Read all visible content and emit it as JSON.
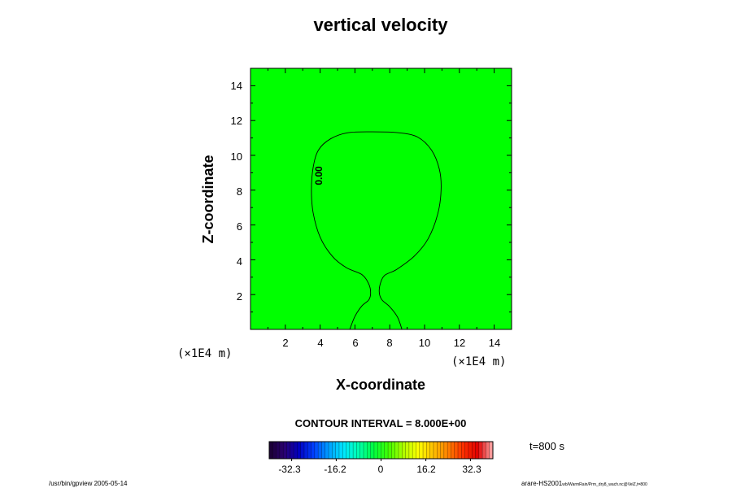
{
  "chart_data": {
    "type": "contour",
    "title": "vertical velocity",
    "xlabel": "X-coordinate",
    "ylabel": "Z-coordinate",
    "x_unit": "(×1E4 m)",
    "y_unit": "(×1E4 m)",
    "xlim": [
      0,
      15
    ],
    "ylim": [
      0,
      15
    ],
    "x_ticks": [
      "2",
      "4",
      "6",
      "8",
      "10",
      "12",
      "14"
    ],
    "y_ticks": [
      "2",
      "4",
      "6",
      "8",
      "10",
      "12",
      "14"
    ],
    "fill_color": "#00ff00",
    "contour_interval_text": "CONTOUR INTERVAL = 8.000E+00",
    "contours": [
      {
        "label": "0.00",
        "points": [
          [
            5.7,
            0
          ],
          [
            6.0,
            0.75
          ],
          [
            6.4,
            1.35
          ],
          [
            6.8,
            1.7
          ],
          [
            6.9,
            2.1
          ],
          [
            6.8,
            2.6
          ],
          [
            6.4,
            3.15
          ],
          [
            5.5,
            3.55
          ],
          [
            4.7,
            4.2
          ],
          [
            4.0,
            5.3
          ],
          [
            3.6,
            6.7
          ],
          [
            3.5,
            8.0
          ],
          [
            3.6,
            9.3
          ],
          [
            3.9,
            10.3
          ],
          [
            4.6,
            10.95
          ],
          [
            5.6,
            11.3
          ],
          [
            7.0,
            11.35
          ],
          [
            8.5,
            11.3
          ],
          [
            9.6,
            11.05
          ],
          [
            10.4,
            10.3
          ],
          [
            10.85,
            9.2
          ],
          [
            10.95,
            8.0
          ],
          [
            10.75,
            6.6
          ],
          [
            10.2,
            5.2
          ],
          [
            9.4,
            4.2
          ],
          [
            8.4,
            3.45
          ],
          [
            7.7,
            3.1
          ],
          [
            7.45,
            2.6
          ],
          [
            7.4,
            2.1
          ],
          [
            7.55,
            1.7
          ],
          [
            8.0,
            1.3
          ],
          [
            8.45,
            0.7
          ],
          [
            8.7,
            0
          ]
        ]
      }
    ],
    "colorbar": {
      "ticks": [
        "-32.3",
        "-16.2",
        "0",
        "16.2",
        "32.3"
      ],
      "tick_values": [
        -32.3,
        -16.2,
        0,
        16.2,
        32.3
      ],
      "range": [
        -40.4,
        40.4
      ],
      "stops": [
        "#1a0030",
        "#2a0070",
        "#0000c0",
        "#0040ff",
        "#00a0ff",
        "#00e8ff",
        "#00ffb0",
        "#00ff40",
        "#40ff00",
        "#b0ff00",
        "#ffff00",
        "#ffc000",
        "#ff8000",
        "#ff3000",
        "#e00000",
        "#ffb0b0"
      ]
    },
    "time_label": "t=800 s"
  },
  "footer": {
    "left": "/usr/bin/gpview 2005-05-14",
    "right_main": "arare-HS2001",
    "right_small": "wb/WarmRain/Prm_dry8_wach.nc@VelZ,t=800"
  }
}
